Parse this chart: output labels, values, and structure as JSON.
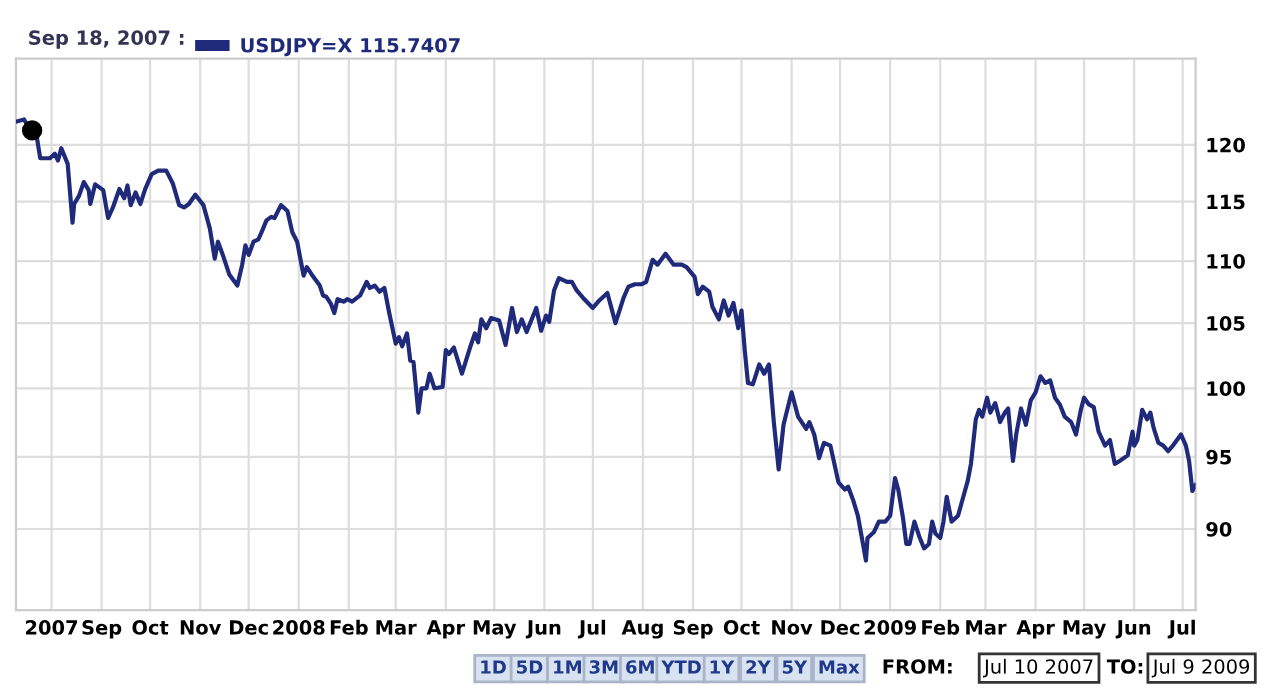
{
  "chart_data": {
    "type": "line",
    "legend_title": "Sep 18, 2007 :",
    "legend": "top left",
    "log": true,
    "grid": true,
    "line_style": "solid",
    "marker": "none",
    "xlim": [
      "2007-07-10",
      "2009-07-09"
    ],
    "ylim": [
      84.7,
      128
    ],
    "yticks": [
      90,
      95,
      100,
      105,
      110,
      115,
      120
    ],
    "xticks": [
      {
        "value": "2007-08-01",
        "label": "2007"
      },
      {
        "value": "2007-09-01",
        "label": "Sep"
      },
      {
        "value": "2007-10-01",
        "label": "Oct"
      },
      {
        "value": "2007-11-01",
        "label": "Nov"
      },
      {
        "value": "2007-12-01",
        "label": "Dec"
      },
      {
        "value": "2008-01-01",
        "label": "2008"
      },
      {
        "value": "2008-02-01",
        "label": "Feb"
      },
      {
        "value": "2008-03-01",
        "label": "Mar"
      },
      {
        "value": "2008-04-01",
        "label": "Apr"
      },
      {
        "value": "2008-05-01",
        "label": "May"
      },
      {
        "value": "2008-06-01",
        "label": "Jun"
      },
      {
        "value": "2008-07-01",
        "label": "Jul"
      },
      {
        "value": "2008-08-01",
        "label": "Aug"
      },
      {
        "value": "2008-09-01",
        "label": "Sep"
      },
      {
        "value": "2008-10-01",
        "label": "Oct"
      },
      {
        "value": "2008-11-01",
        "label": "Nov"
      },
      {
        "value": "2008-12-01",
        "label": "Dec"
      },
      {
        "value": "2009-01-01",
        "label": "2009"
      },
      {
        "value": "2009-02-01",
        "label": "Feb"
      },
      {
        "value": "2009-03-01",
        "label": "Mar"
      },
      {
        "value": "2009-04-01",
        "label": "Apr"
      },
      {
        "value": "2009-05-01",
        "label": "May"
      },
      {
        "value": "2009-06-01",
        "label": "Jun"
      },
      {
        "value": "2009-07-01",
        "label": "Jul"
      }
    ],
    "series": [
      {
        "name": "USDJPY=X 115.7407",
        "color": "#1f2a7a",
        "x": [
          "2007-07-10",
          "2007-07-15",
          "2007-07-17",
          "2007-07-20",
          "2007-07-23",
          "2007-07-25",
          "2007-07-31",
          "2007-08-03",
          "2007-08-05",
          "2007-08-07",
          "2007-08-11",
          "2007-08-14",
          "2007-08-15",
          "2007-08-18",
          "2007-08-21",
          "2007-08-24",
          "2007-08-25",
          "2007-08-28",
          "2007-09-02",
          "2007-09-05",
          "2007-09-08",
          "2007-09-12",
          "2007-09-15",
          "2007-09-17",
          "2007-09-19",
          "2007-09-22",
          "2007-09-25",
          "2007-09-28",
          "2007-10-02",
          "2007-10-06",
          "2007-10-11",
          "2007-10-15",
          "2007-10-19",
          "2007-10-22",
          "2007-10-25",
          "2007-10-29",
          "2007-11-03",
          "2007-11-07",
          "2007-11-10",
          "2007-11-12",
          "2007-11-15",
          "2007-11-19",
          "2007-11-24",
          "2007-11-27",
          "2007-11-29",
          "2007-12-01",
          "2007-12-04",
          "2007-12-07",
          "2007-12-09",
          "2007-12-12",
          "2007-12-15",
          "2007-12-17",
          "2007-12-21",
          "2007-12-25",
          "2007-12-28",
          "2007-12-31",
          "2008-01-04",
          "2008-01-06",
          "2008-01-09",
          "2008-01-14",
          "2008-01-16",
          "2008-01-18",
          "2008-01-21",
          "2008-01-23",
          "2008-01-25",
          "2008-01-29",
          "2008-01-31",
          "2008-02-03",
          "2008-02-08",
          "2008-02-12",
          "2008-02-14",
          "2008-02-17",
          "2008-02-20",
          "2008-02-23",
          "2008-02-26",
          "2008-03-01",
          "2008-03-03",
          "2008-03-05",
          "2008-03-08",
          "2008-03-10",
          "2008-03-12",
          "2008-03-15",
          "2008-03-17",
          "2008-03-20",
          "2008-03-22",
          "2008-03-25",
          "2008-03-30",
          "2008-04-01",
          "2008-04-03",
          "2008-04-06",
          "2008-04-11",
          "2008-04-16",
          "2008-04-19",
          "2008-04-21",
          "2008-04-23",
          "2008-04-26",
          "2008-04-29",
          "2008-05-04",
          "2008-05-08",
          "2008-05-12",
          "2008-05-15",
          "2008-05-18",
          "2008-05-21",
          "2008-05-27",
          "2008-05-30",
          "2008-06-02",
          "2008-06-04",
          "2008-06-07",
          "2008-06-10",
          "2008-06-15",
          "2008-06-18",
          "2008-06-21",
          "2008-06-25",
          "2008-07-01",
          "2008-07-05",
          "2008-07-10",
          "2008-07-15",
          "2008-07-20",
          "2008-07-23",
          "2008-07-27",
          "2008-07-31",
          "2008-08-03",
          "2008-08-07",
          "2008-08-10",
          "2008-08-15",
          "2008-08-20",
          "2008-08-25",
          "2008-08-28",
          "2008-09-02",
          "2008-09-04",
          "2008-09-07",
          "2008-09-11",
          "2008-09-13",
          "2008-09-17",
          "2008-09-20",
          "2008-09-23",
          "2008-09-26",
          "2008-09-29",
          "2008-10-01",
          "2008-10-03",
          "2008-10-05",
          "2008-10-08",
          "2008-10-12",
          "2008-10-15",
          "2008-10-18",
          "2008-10-21",
          "2008-10-24",
          "2008-10-27",
          "2008-11-01",
          "2008-11-05",
          "2008-11-10",
          "2008-11-12",
          "2008-11-15",
          "2008-11-18",
          "2008-11-21",
          "2008-11-25",
          "2008-11-30",
          "2008-12-04",
          "2008-12-06",
          "2008-12-09",
          "2008-12-12",
          "2008-12-15",
          "2008-12-17",
          "2008-12-18",
          "2008-12-22",
          "2008-12-25",
          "2008-12-29",
          "2009-01-01",
          "2009-01-04",
          "2009-01-06",
          "2009-01-09",
          "2009-01-11",
          "2009-01-13",
          "2009-01-16",
          "2009-01-19",
          "2009-01-22",
          "2009-01-25",
          "2009-01-27",
          "2009-01-29",
          "2009-02-01",
          "2009-02-03",
          "2009-02-05",
          "2009-02-08",
          "2009-02-12",
          "2009-02-15",
          "2009-02-18",
          "2009-02-20",
          "2009-02-23",
          "2009-02-25",
          "2009-02-27",
          "2009-03-02",
          "2009-03-04",
          "2009-03-07",
          "2009-03-10",
          "2009-03-13",
          "2009-03-15",
          "2009-03-18",
          "2009-03-20",
          "2009-03-23",
          "2009-03-26",
          "2009-03-29",
          "2009-04-01",
          "2009-04-04",
          "2009-04-07",
          "2009-04-10",
          "2009-04-13",
          "2009-04-16",
          "2009-04-19",
          "2009-04-23",
          "2009-04-26",
          "2009-04-29",
          "2009-05-01",
          "2009-05-04",
          "2009-05-07",
          "2009-05-10",
          "2009-05-14",
          "2009-05-17",
          "2009-05-20",
          "2009-05-23",
          "2009-05-28",
          "2009-05-31",
          "2009-06-01",
          "2009-06-03",
          "2009-06-06",
          "2009-06-09",
          "2009-06-11",
          "2009-06-13",
          "2009-06-16",
          "2009-06-19",
          "2009-06-22",
          "2009-06-25",
          "2009-06-30",
          "2009-07-03",
          "2009-07-05",
          "2009-07-07",
          "2009-07-09"
        ],
        "values": [
          122.1,
          122.3,
          121.8,
          121.3,
          120.6,
          118.8,
          118.8,
          119.2,
          118.6,
          119.7,
          118.3,
          113.2,
          114.8,
          115.5,
          116.7,
          116.0,
          114.8,
          116.5,
          116.0,
          113.6,
          114.5,
          116.1,
          115.3,
          116.4,
          114.7,
          115.8,
          114.8,
          116.1,
          117.4,
          117.7,
          117.7,
          116.6,
          114.7,
          114.5,
          114.8,
          115.6,
          114.7,
          112.7,
          110.2,
          111.6,
          110.5,
          108.9,
          108.0,
          109.7,
          111.3,
          110.5,
          111.6,
          111.8,
          112.4,
          113.4,
          113.7,
          113.6,
          114.7,
          114.2,
          112.4,
          111.6,
          108.8,
          109.5,
          108.9,
          108.0,
          107.2,
          107.1,
          106.5,
          105.8,
          106.9,
          106.7,
          106.9,
          106.7,
          107.2,
          108.3,
          107.8,
          108.0,
          107.5,
          107.8,
          105.8,
          103.4,
          103.9,
          103.2,
          104.2,
          102.1,
          102.0,
          98.2,
          100.0,
          100.0,
          101.1,
          100.0,
          100.1,
          102.9,
          102.6,
          103.1,
          101.1,
          103.1,
          104.2,
          103.5,
          105.3,
          104.6,
          105.4,
          105.2,
          103.3,
          106.2,
          104.3,
          105.3,
          104.3,
          106.2,
          104.4,
          105.6,
          105.1,
          107.6,
          108.6,
          108.3,
          108.3,
          107.6,
          107.0,
          106.2,
          106.8,
          107.4,
          105.0,
          107.0,
          107.9,
          108.1,
          108.1,
          108.3,
          110.1,
          109.7,
          110.6,
          109.7,
          109.7,
          109.5,
          108.7,
          107.3,
          107.9,
          107.5,
          106.3,
          105.3,
          106.8,
          105.6,
          106.6,
          104.6,
          106.0,
          102.9,
          100.4,
          100.3,
          101.8,
          101.1,
          101.8,
          97.5,
          94.1,
          97.3,
          99.7,
          97.9,
          97.0,
          97.5,
          96.6,
          94.9,
          96.0,
          95.8,
          93.2,
          92.7,
          92.9,
          92.0,
          90.9,
          89.1,
          87.9,
          89.4,
          89.8,
          90.5,
          90.5,
          90.9,
          93.5,
          92.7,
          90.7,
          89.0,
          89.0,
          90.5,
          89.5,
          88.7,
          89.0,
          90.5,
          89.7,
          89.4,
          90.5,
          92.2,
          90.5,
          90.9,
          92.1,
          93.3,
          94.5,
          97.7,
          98.4,
          97.9,
          99.3,
          98.2,
          98.9,
          97.5,
          98.2,
          98.5,
          94.7,
          96.6,
          98.5,
          97.3,
          99.1,
          99.7,
          100.9,
          100.4,
          100.6,
          99.3,
          98.8,
          97.9,
          97.5,
          96.6,
          98.4,
          99.3,
          98.8,
          98.6,
          96.8,
          95.8,
          96.2,
          94.5,
          94.7,
          95.1,
          96.8,
          95.8,
          96.2,
          98.4,
          97.7,
          98.2,
          97.1,
          96.0,
          95.8,
          95.4,
          95.8,
          96.6,
          95.8,
          94.7,
          92.6,
          93.0
        ]
      },
      {
        "type": "scatter",
        "marker": "circle",
        "color": "#000000",
        "x": [
          "2007-07-20"
        ],
        "values": [
          121.3
        ]
      }
    ],
    "annotations": [
      "1D",
      "5D",
      "1M",
      "3M",
      "6M",
      "YTD",
      "1Y",
      "2Y",
      "5Y",
      "Max",
      "FROM:",
      "Jul 10 2007",
      "TO:",
      "Jul 9 2009"
    ]
  }
}
